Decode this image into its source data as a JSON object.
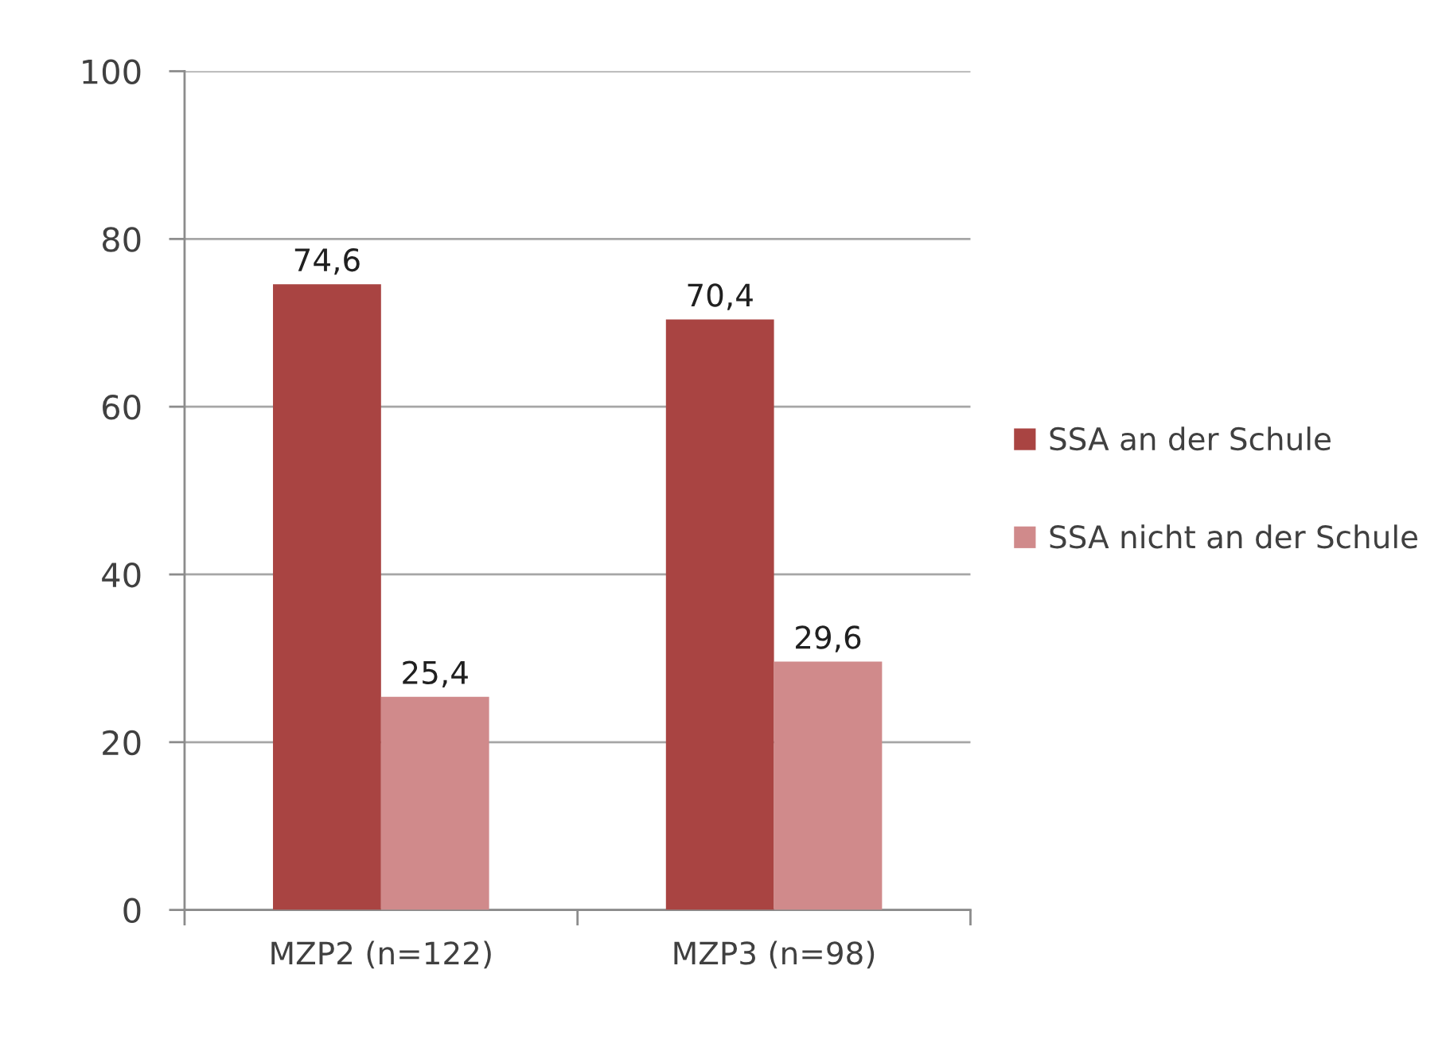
{
  "chart_data": {
    "type": "bar",
    "categories": [
      "MZP2 (n=122)",
      "MZP3 (n=98)"
    ],
    "series": [
      {
        "name": "SSA an der Schule",
        "color": "#a94442",
        "values": [
          74.6,
          70.4
        ],
        "value_labels": [
          "74,6",
          "70,4"
        ]
      },
      {
        "name": "SSA nicht an der Schule",
        "color": "#d08a8b",
        "values": [
          25.4,
          29.6
        ],
        "value_labels": [
          "25,4",
          "29,6"
        ]
      }
    ],
    "ylim": [
      0,
      100
    ],
    "yticks": [
      0,
      20,
      40,
      60,
      80,
      100
    ],
    "grid": "y",
    "legend": "right"
  }
}
